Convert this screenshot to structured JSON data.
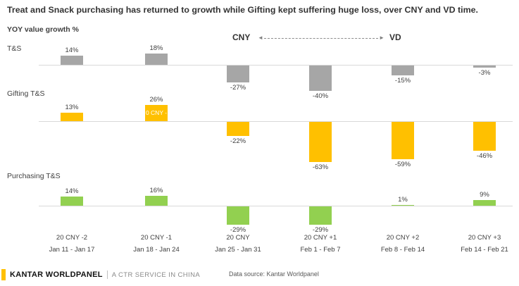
{
  "title": "Treat and Snack purchasing has returned to growth while Gifting kept suffering huge loss, over CNY and VD time.",
  "y_axis_label": "YOY value growth %",
  "annotations": {
    "left_label": "CNY",
    "right_label": "VD"
  },
  "chart_data": {
    "type": "bar",
    "value_suffix": "%",
    "grid": false,
    "ylabel": "YOY value growth %",
    "categories": [
      "20 CNY -2",
      "20 CNY -1",
      "20 CNY",
      "20 CNY +1",
      "20 CNY +2",
      "20 CNY +3"
    ],
    "date_ranges": [
      "Jan 11 - Jan 17",
      "Jan 18 - Jan 24",
      "Jan 25 - Jan 31",
      "Feb 1 - Feb 7",
      "Feb 8 - Feb 14",
      "Feb 14 - Feb 21"
    ],
    "series": [
      {
        "name": "T&S",
        "color": "#a6a6a6",
        "values": [
          14,
          18,
          -27,
          -40,
          -15,
          -3
        ]
      },
      {
        "name": "Gifting T&S",
        "color": "#ffc000",
        "values": [
          13,
          26,
          -22,
          -63,
          -59,
          -46
        ],
        "inner_label": {
          "index": 1,
          "text": "0 CNY -",
          "color": "#ffffff"
        }
      },
      {
        "name": "Purchasing T&S",
        "color": "#92d050",
        "values": [
          14,
          16,
          -29,
          -29,
          1,
          9
        ]
      }
    ]
  },
  "footer": {
    "brand": "KANTAR WORLDPANEL",
    "tagline": "A CTR SERVICE IN CHINA",
    "data_source": "Data source:  Kantar Worldpanel",
    "accent_color": "#ffc000"
  }
}
